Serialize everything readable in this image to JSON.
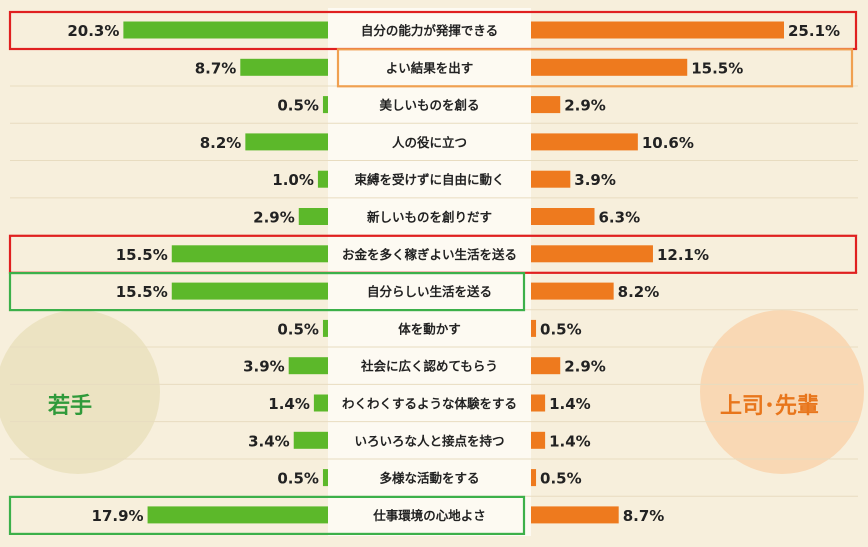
{
  "chart_data": {
    "type": "bar",
    "orientation": "horizontal-butterfly",
    "categories": [
      "自分の能力が発揮できる",
      "よい結果を出す",
      "美しいものを創る",
      "人の役に立つ",
      "束縛を受けずに自由に動く",
      "新しいものを創りだす",
      "お金を多く稼ぎよい生活を送る",
      "自分らしい生活を送る",
      "体を動かす",
      "社会に広く認めてもらう",
      "わくわくするような体験をする",
      "いろいろな人と接点を持つ",
      "多様な活動をする",
      "仕事環境の心地よさ"
    ],
    "series": [
      {
        "name": "若手",
        "color": "#5cb82a",
        "values": [
          20.3,
          8.7,
          0.5,
          8.2,
          1.0,
          2.9,
          15.5,
          15.5,
          0.5,
          3.9,
          1.4,
          3.4,
          0.5,
          17.9
        ],
        "labels": [
          "20.3%",
          "8.7%",
          "0.5%",
          "8.2%",
          "1.0%",
          "2.9%",
          "15.5%",
          "15.5%",
          "0.5%",
          "3.9%",
          "1.4%",
          "3.4%",
          "0.5%",
          "17.9%"
        ]
      },
      {
        "name": "上司・先輩",
        "color": "#ee7a1e",
        "values": [
          25.1,
          15.5,
          2.9,
          10.6,
          3.9,
          6.3,
          12.1,
          8.2,
          0.5,
          2.9,
          1.4,
          1.4,
          0.5,
          8.7
        ],
        "labels": [
          "25.1%",
          "15.5%",
          "2.9%",
          "10.6%",
          "3.9%",
          "6.3%",
          "12.1%",
          "8.2%",
          "0.5%",
          "2.9%",
          "1.4%",
          "1.4%",
          "0.5%",
          "8.7%"
        ]
      }
    ],
    "xlim": [
      0,
      25.1
    ],
    "grid": false,
    "highlights": [
      {
        "category_index": 0,
        "side": "both",
        "color": "#e02020"
      },
      {
        "category_index": 1,
        "side": "right",
        "color": "#f0a050"
      },
      {
        "category_index": 6,
        "side": "both",
        "color": "#e02020"
      },
      {
        "category_index": 7,
        "side": "left",
        "color": "#3cb04a"
      },
      {
        "category_index": 13,
        "side": "left",
        "color": "#3cb04a"
      }
    ]
  },
  "left_label": "若手",
  "right_label": "上司･先輩"
}
